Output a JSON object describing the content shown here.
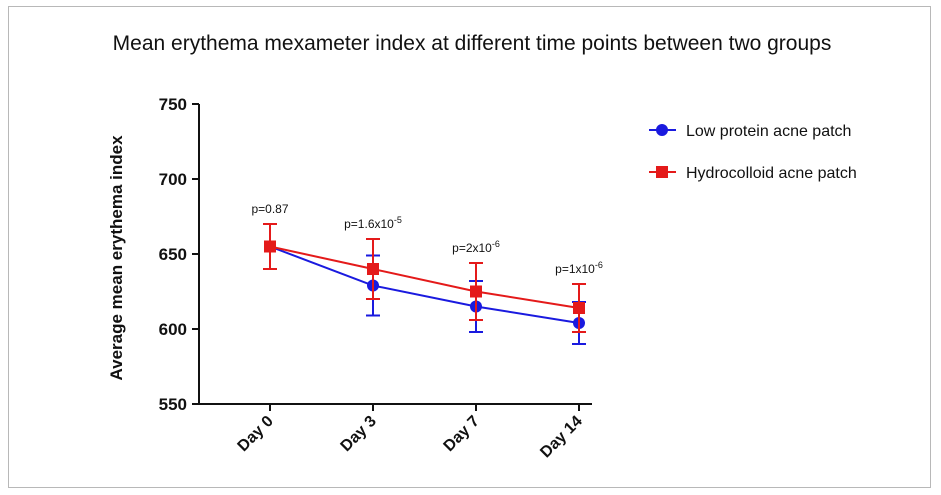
{
  "chart_data": {
    "type": "line",
    "title": "Mean erythema mexameter index at different time points between two groups",
    "xlabel": "",
    "ylabel": "Average mean erythema index",
    "categories": [
      "Day 0",
      "Day 3",
      "Day 7",
      "Day 14"
    ],
    "ylim": [
      550,
      750
    ],
    "yticks": [
      550,
      600,
      650,
      700,
      750
    ],
    "grid": false,
    "legend_position": "top-right",
    "series": [
      {
        "name": "Low protein acne patch",
        "color": "#1a1adf",
        "marker": "circle",
        "values": [
          655,
          629,
          615,
          604
        ],
        "error": [
          15,
          20,
          17,
          14
        ]
      },
      {
        "name": "Hydrocolloid acne patch",
        "color": "#e41a1a",
        "marker": "square",
        "values": [
          655,
          640,
          625,
          614
        ],
        "error": [
          15,
          20,
          19,
          16
        ]
      }
    ],
    "annotations": [
      {
        "base": "p=0.87",
        "sup": ""
      },
      {
        "base": "p=1.6x10",
        "sup": "-5"
      },
      {
        "base": "p=2x10",
        "sup": "-6"
      },
      {
        "base": "p=1x10",
        "sup": "-6"
      }
    ]
  }
}
